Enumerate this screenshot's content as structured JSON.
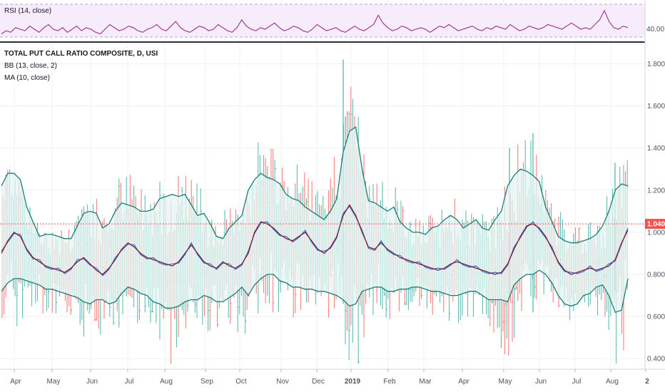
{
  "rsi_panel": {
    "label": "RSI (14, close)",
    "axis_tick": "40.00",
    "chart_data": {
      "type": "line",
      "series": [
        {
          "name": "RSI (14, close)",
          "values": [
            40,
            42,
            41,
            44,
            43,
            42,
            45,
            43,
            41,
            44,
            46,
            43,
            42,
            44,
            41,
            43,
            45,
            42,
            44,
            43,
            41,
            40,
            43,
            46,
            44,
            42,
            43,
            45,
            44,
            42,
            41,
            43,
            44,
            46,
            43,
            42,
            45,
            48,
            44,
            42,
            41,
            43,
            45,
            44,
            42,
            43,
            46,
            44,
            42,
            41,
            44,
            49,
            45,
            43,
            42,
            44,
            43,
            45,
            47,
            44,
            42,
            43,
            45,
            44,
            42,
            41,
            43,
            46,
            44,
            42,
            43,
            44,
            42,
            41,
            43,
            45,
            43,
            42,
            44,
            46,
            52,
            47,
            44,
            42,
            43,
            45,
            44,
            42,
            43,
            44,
            43,
            41,
            43,
            45,
            44,
            46,
            44,
            42,
            43,
            44,
            45,
            43,
            42,
            44,
            43,
            45,
            44,
            43,
            46,
            44,
            42,
            43,
            45,
            44,
            43,
            44,
            46,
            45,
            44,
            43,
            45,
            47,
            45,
            43,
            44,
            43,
            46,
            49,
            55,
            48,
            44,
            43,
            45,
            44
          ]
        }
      ],
      "ylim": [
        37,
        60
      ]
    }
  },
  "main_panel": {
    "title": "TOTAL PUT CALL RATIO COMPOSITE, D, USI",
    "bb_label": "BB (13, close, 2)",
    "ma_label": "MA (10, close)",
    "price_badge": "1.040",
    "price_line": 1.04,
    "y_ticks": [
      "1.800",
      "1.600",
      "1.400",
      "1.200",
      "1.000",
      "0.800",
      "0.600",
      "0.400"
    ],
    "x_ticks": [
      "Apr",
      "May",
      "Jun",
      "Jul",
      "Aug",
      "Sep",
      "Oct",
      "Nov",
      "Dec",
      "2019",
      "Feb",
      "Mar",
      "Apr",
      "May",
      "Jun",
      "Jul",
      "Aug",
      "2"
    ],
    "colors": {
      "up": "#26a69a",
      "down": "#ef5350",
      "bb_band": "#1b7e76",
      "bb_fill": "#e3f4f1",
      "ma": "#7b1e3c",
      "basis": "#3d6bc2",
      "rsi": "#9c2b8e",
      "rsi_fill": "#f0dcf7",
      "price_line": "#ef5350"
    },
    "chart_data": {
      "type": "line",
      "ylim": [
        0.35,
        1.9
      ],
      "series": [
        {
          "name": "MA (10, close)",
          "values": [
            0.9,
            0.96,
            1.0,
            0.98,
            0.92,
            0.88,
            0.86,
            0.84,
            0.83,
            0.82,
            0.81,
            0.83,
            0.86,
            0.88,
            0.85,
            0.82,
            0.8,
            0.83,
            0.87,
            0.92,
            0.95,
            0.93,
            0.9,
            0.88,
            0.87,
            0.86,
            0.85,
            0.84,
            0.86,
            0.9,
            0.94,
            0.9,
            0.86,
            0.84,
            0.83,
            0.86,
            0.84,
            0.83,
            0.85,
            0.9,
            1.0,
            1.05,
            1.04,
            1.02,
            0.99,
            0.97,
            0.96,
            0.98,
            1.0,
            0.96,
            0.92,
            0.9,
            0.93,
            0.98,
            1.08,
            1.13,
            1.08,
            1.0,
            0.93,
            0.92,
            0.95,
            0.92,
            0.9,
            0.88,
            0.87,
            0.86,
            0.85,
            0.84,
            0.83,
            0.82,
            0.83,
            0.85,
            0.86,
            0.85,
            0.84,
            0.83,
            0.82,
            0.81,
            0.8,
            0.81,
            0.85,
            0.92,
            0.98,
            1.03,
            1.04,
            1.02,
            0.98,
            0.92,
            0.86,
            0.82,
            0.8,
            0.81,
            0.82,
            0.83,
            0.82,
            0.83,
            0.84,
            0.87,
            0.95,
            1.01
          ]
        },
        {
          "name": "BB upper",
          "values": [
            1.22,
            1.28,
            1.28,
            1.25,
            1.12,
            1.05,
            0.98,
            0.99,
            0.99,
            0.98,
            0.97,
            0.97,
            1.03,
            1.09,
            1.1,
            1.09,
            1.02,
            1.04,
            1.1,
            1.14,
            1.13,
            1.12,
            1.1,
            1.1,
            1.11,
            1.16,
            1.17,
            1.18,
            1.17,
            1.18,
            1.13,
            1.08,
            1.09,
            1.04,
            0.98,
            0.97,
            1.02,
            1.05,
            1.08,
            1.2,
            1.25,
            1.28,
            1.26,
            1.25,
            1.23,
            1.18,
            1.16,
            1.15,
            1.12,
            1.1,
            1.08,
            1.06,
            1.1,
            1.16,
            1.38,
            1.48,
            1.5,
            1.3,
            1.15,
            1.14,
            1.12,
            1.1,
            1.12,
            1.05,
            1.02,
            1.0,
            1.0,
            0.99,
            1.02,
            1.03,
            1.06,
            1.08,
            1.06,
            1.02,
            1.04,
            1.06,
            1.02,
            1.01,
            1.06,
            1.1,
            1.22,
            1.27,
            1.3,
            1.29,
            1.27,
            1.24,
            1.12,
            1.05,
            0.98,
            0.96,
            0.95,
            0.95,
            0.96,
            0.97,
            0.99,
            1.03,
            1.1,
            1.2,
            1.23,
            1.22
          ]
        },
        {
          "name": "BB lower",
          "values": [
            0.72,
            0.76,
            0.78,
            0.78,
            0.77,
            0.76,
            0.75,
            0.73,
            0.73,
            0.72,
            0.71,
            0.7,
            0.69,
            0.67,
            0.66,
            0.68,
            0.68,
            0.66,
            0.67,
            0.71,
            0.74,
            0.73,
            0.71,
            0.7,
            0.67,
            0.66,
            0.64,
            0.64,
            0.65,
            0.67,
            0.68,
            0.68,
            0.7,
            0.69,
            0.67,
            0.67,
            0.69,
            0.71,
            0.74,
            0.7,
            0.75,
            0.78,
            0.8,
            0.8,
            0.77,
            0.76,
            0.74,
            0.74,
            0.73,
            0.73,
            0.72,
            0.72,
            0.71,
            0.7,
            0.68,
            0.65,
            0.66,
            0.72,
            0.73,
            0.74,
            0.74,
            0.72,
            0.72,
            0.73,
            0.73,
            0.74,
            0.74,
            0.73,
            0.72,
            0.72,
            0.71,
            0.7,
            0.7,
            0.71,
            0.72,
            0.72,
            0.7,
            0.68,
            0.68,
            0.68,
            0.67,
            0.75,
            0.78,
            0.8,
            0.8,
            0.82,
            0.8,
            0.76,
            0.7,
            0.66,
            0.65,
            0.66,
            0.7,
            0.71,
            0.74,
            0.75,
            0.7,
            0.62,
            0.63,
            0.78
          ]
        }
      ]
    }
  }
}
